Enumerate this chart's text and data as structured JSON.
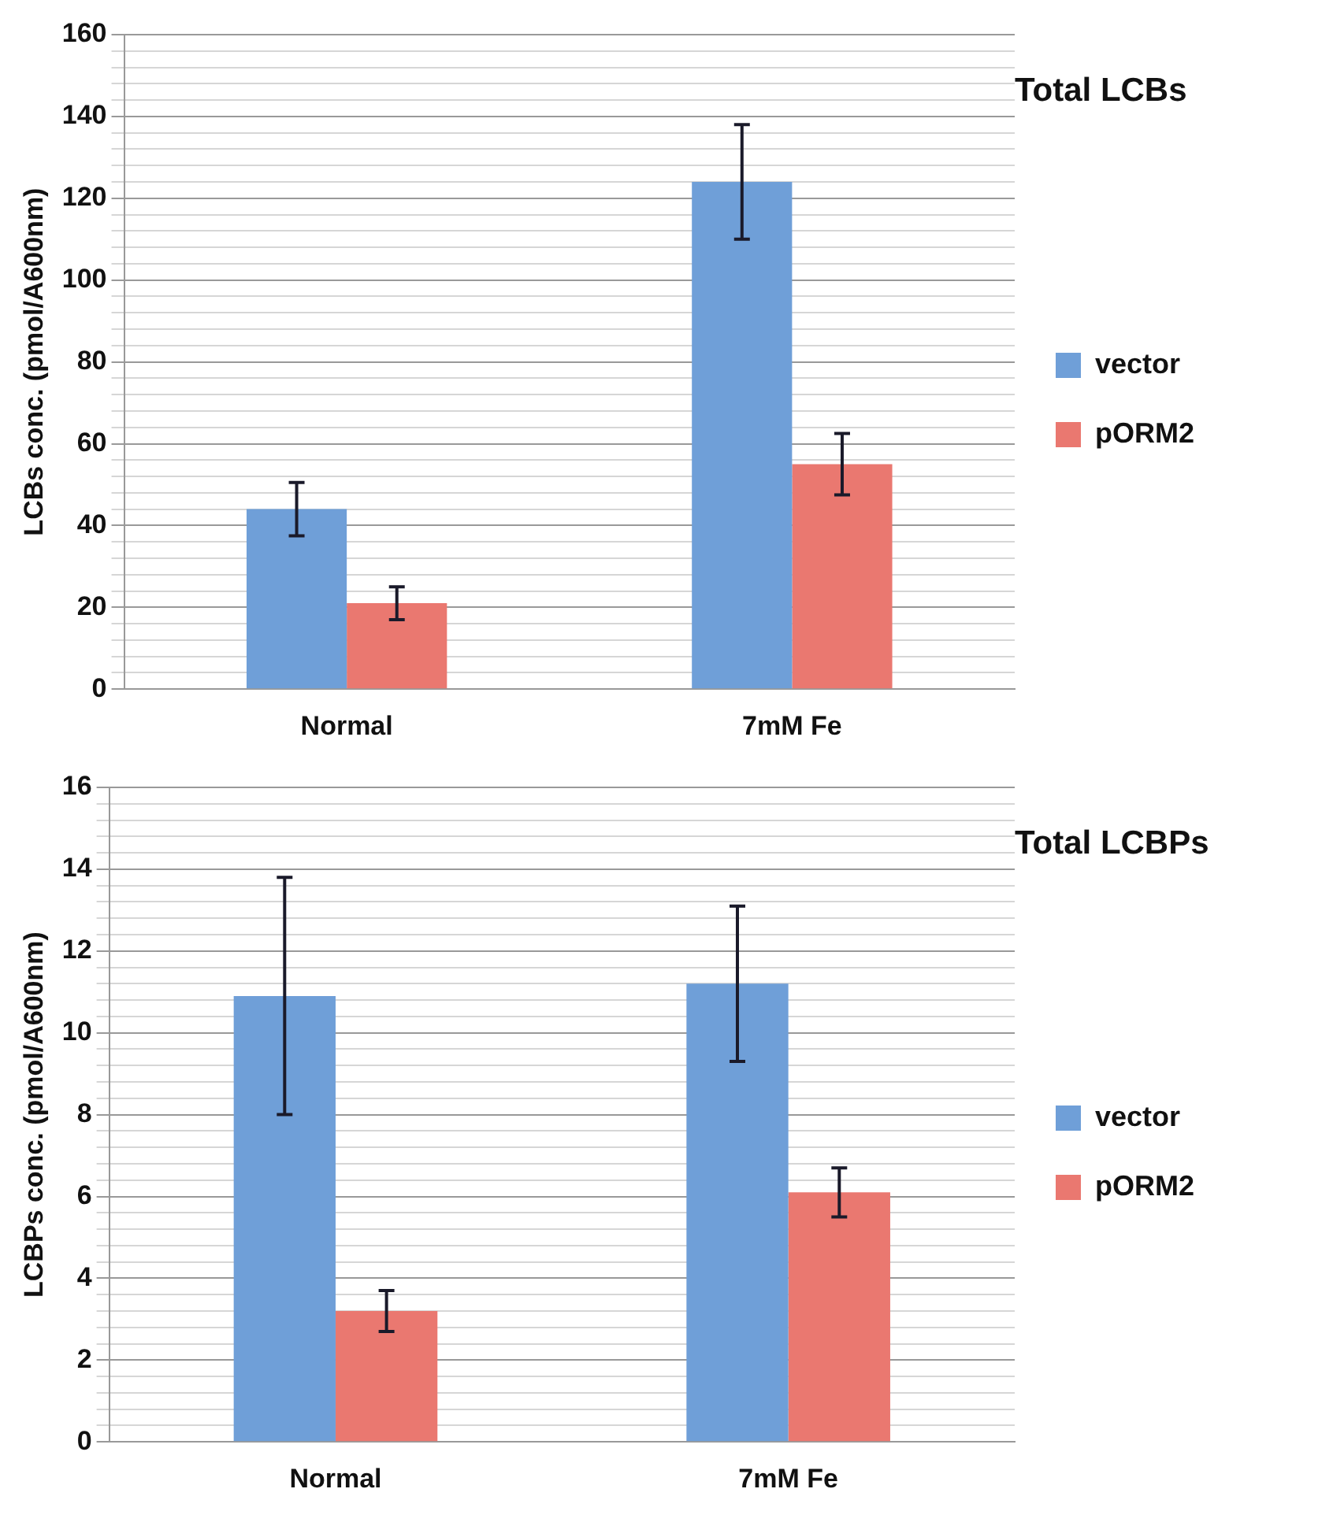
{
  "chart_data": [
    {
      "type": "bar",
      "title": "Total LCBs",
      "ylabel": "LCBs conc. (pmol/A600nm)",
      "categories": [
        "Normal",
        "7mM Fe"
      ],
      "series": [
        {
          "name": "vector",
          "color": "#6f9fd8",
          "values": [
            44,
            124
          ],
          "errors": [
            6.5,
            14
          ]
        },
        {
          "name": "pORM2",
          "color": "#ea7870",
          "values": [
            21,
            55
          ],
          "errors": [
            4,
            7.5
          ]
        }
      ],
      "ylim": [
        0,
        160
      ],
      "yticks": [
        0,
        {
          "value": 4,
          "label": null
        },
        {
          "value": 8,
          "label": null
        },
        {
          "value": 12,
          "label": null
        },
        {
          "value": 16,
          "label": null
        },
        20,
        {
          "value": 24,
          "label": null
        },
        {
          "value": 28,
          "label": null
        },
        {
          "value": 32,
          "label": null
        },
        {
          "value": 36,
          "label": null
        },
        40,
        {
          "value": 44,
          "label": null
        },
        {
          "value": 48,
          "label": null
        },
        {
          "value": 52,
          "label": null
        },
        {
          "value": 56,
          "label": null
        },
        60,
        {
          "value": 64,
          "label": null
        },
        {
          "value": 68,
          "label": null
        },
        {
          "value": 72,
          "label": null
        },
        {
          "value": 76,
          "label": null
        },
        80,
        {
          "value": 84,
          "label": null
        },
        {
          "value": 88,
          "label": null
        },
        {
          "value": 92,
          "label": null
        },
        {
          "value": 96,
          "label": null
        },
        100,
        {
          "value": 104,
          "label": null
        },
        {
          "value": 108,
          "label": null
        },
        {
          "value": 112,
          "label": null
        },
        {
          "value": 116,
          "label": null
        },
        120,
        {
          "value": 124,
          "label": null
        },
        {
          "value": 128,
          "label": null
        },
        {
          "value": 132,
          "label": null
        },
        {
          "value": 136,
          "label": null
        },
        140,
        {
          "value": 144,
          "label": null
        },
        {
          "value": 148,
          "label": null
        },
        {
          "value": 152,
          "label": null
        },
        {
          "value": 156,
          "label": null
        },
        160
      ],
      "grid": "y",
      "legend": "right"
    },
    {
      "type": "bar",
      "title": "Total LCBPs",
      "ylabel": "LCBPs conc. (pmol/A600nm)",
      "categories": [
        "Normal",
        "7mM Fe"
      ],
      "series": [
        {
          "name": "vector",
          "color": "#6f9fd8",
          "values": [
            10.9,
            11.2
          ],
          "errors": [
            2.9,
            1.9
          ]
        },
        {
          "name": "pORM2",
          "color": "#ea7870",
          "values": [
            3.2,
            6.1
          ],
          "errors": [
            0.5,
            0.6
          ]
        }
      ],
      "ylim": [
        0,
        16
      ],
      "yticks": [
        0,
        {
          "value": 0.4,
          "label": null
        },
        {
          "value": 0.8,
          "label": null
        },
        {
          "value": 1.2,
          "label": null
        },
        {
          "value": 1.6,
          "label": null
        },
        2,
        {
          "value": 2.4,
          "label": null
        },
        {
          "value": 2.8,
          "label": null
        },
        {
          "value": 3.2,
          "label": null
        },
        {
          "value": 3.6,
          "label": null
        },
        4,
        {
          "value": 4.4,
          "label": null
        },
        {
          "value": 4.8,
          "label": null
        },
        {
          "value": 5.2,
          "label": null
        },
        {
          "value": 5.6,
          "label": null
        },
        6,
        {
          "value": 6.4,
          "label": null
        },
        {
          "value": 6.8,
          "label": null
        },
        {
          "value": 7.2,
          "label": null
        },
        {
          "value": 7.6,
          "label": null
        },
        8,
        {
          "value": 8.4,
          "label": null
        },
        {
          "value": 8.8,
          "label": null
        },
        {
          "value": 9.2,
          "label": null
        },
        {
          "value": 9.6,
          "label": null
        },
        10,
        {
          "value": 10.4,
          "label": null
        },
        {
          "value": 10.8,
          "label": null
        },
        {
          "value": 11.2,
          "label": null
        },
        {
          "value": 11.6,
          "label": null
        },
        12,
        {
          "value": 12.4,
          "label": null
        },
        {
          "value": 12.8,
          "label": null
        },
        {
          "value": 13.2,
          "label": null
        },
        {
          "value": 13.6,
          "label": null
        },
        14,
        {
          "value": 14.4,
          "label": null
        },
        {
          "value": 14.8,
          "label": null
        },
        {
          "value": 15.2,
          "label": null
        },
        {
          "value": 15.6,
          "label": null
        },
        16
      ],
      "grid": "y",
      "legend": "right"
    }
  ]
}
